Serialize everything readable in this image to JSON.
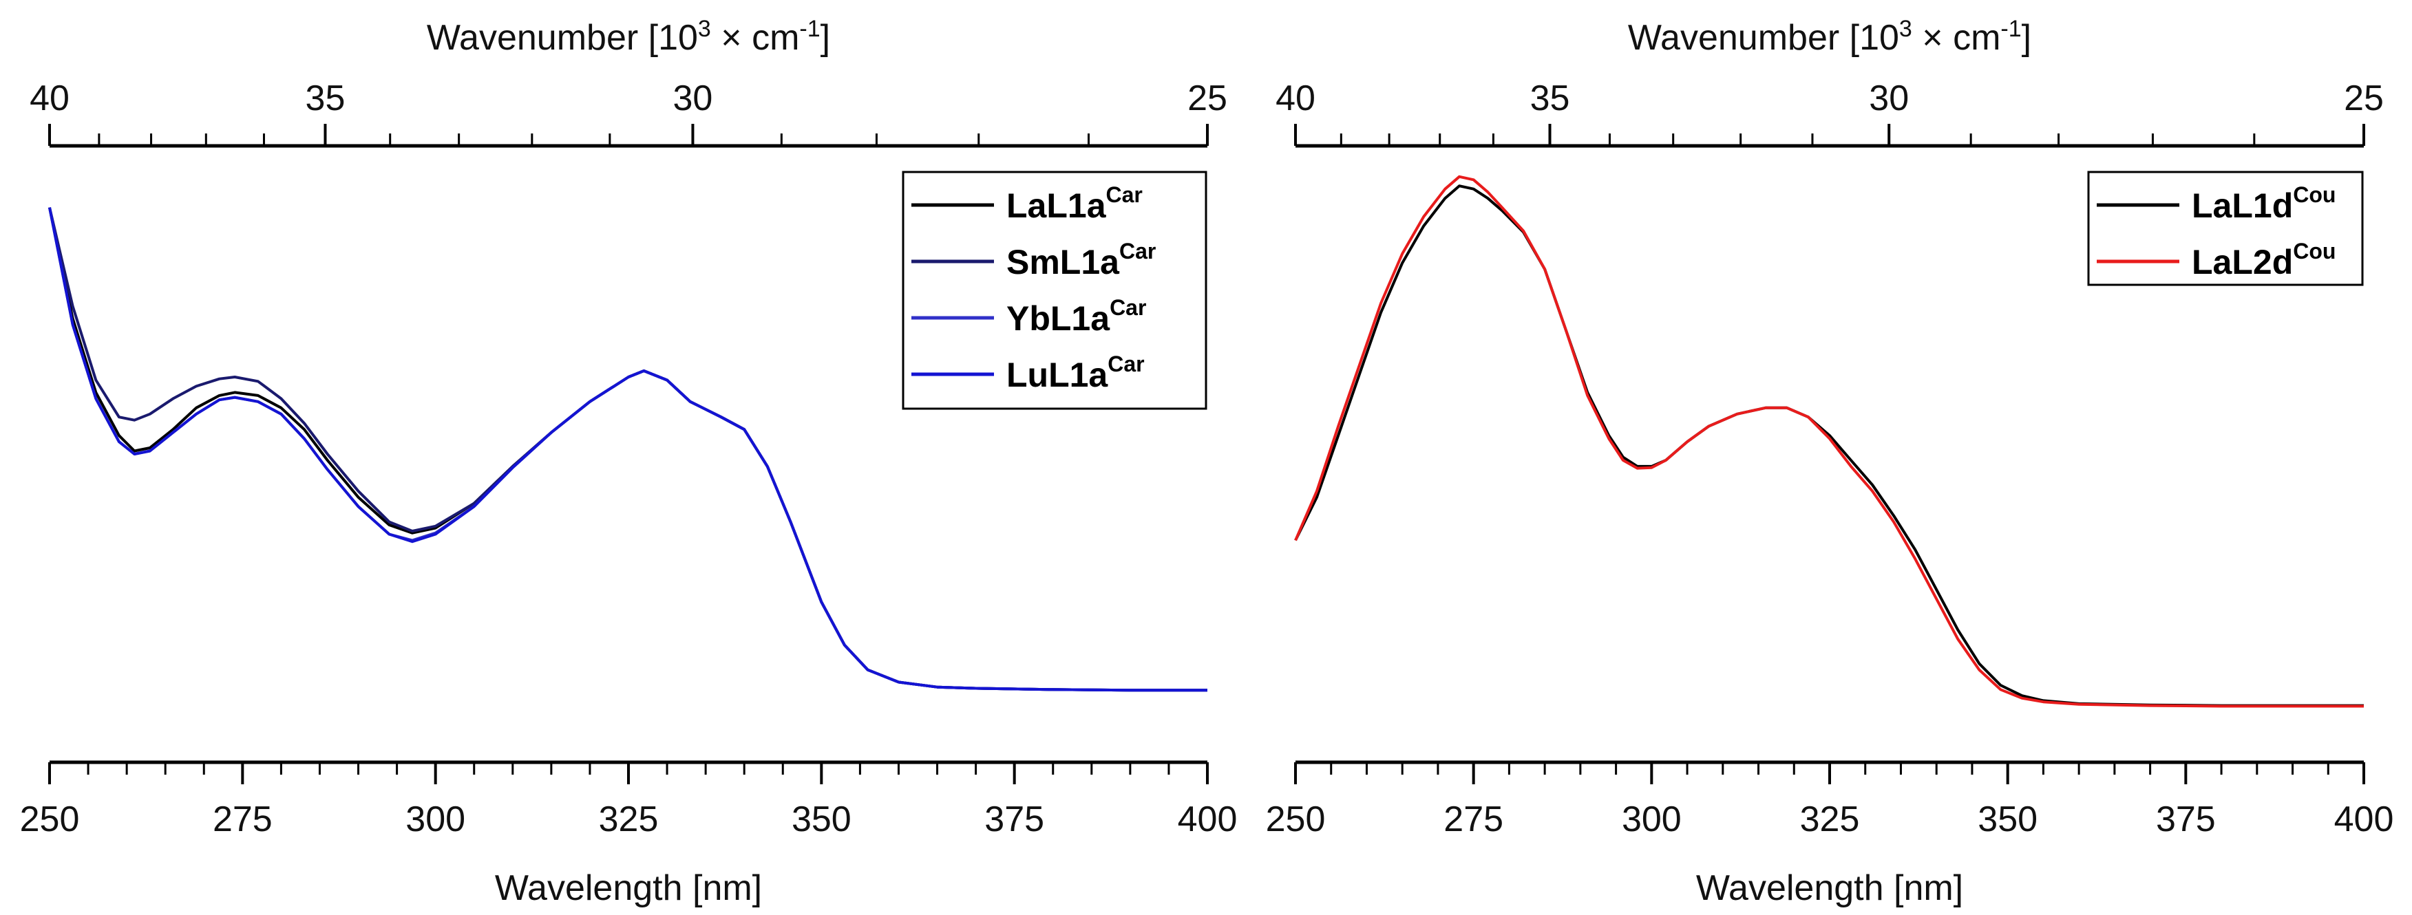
{
  "chart_data": [
    {
      "type": "line",
      "xlabel": "Wavelength [nm]",
      "x2label_prefix": "Wavenumber [10",
      "x2label_exp": "3",
      "x2label_mid": " × cm",
      "x2label_exp2": "-1",
      "x2label_suffix": "]",
      "xlim": [
        250,
        400
      ],
      "ylim": [
        0,
        1
      ],
      "xticks": [
        "250",
        "275",
        "300",
        "325",
        "350",
        "375",
        "400"
      ],
      "x2ticks": [
        "40",
        "35",
        "30",
        "25"
      ],
      "series": [
        {
          "name": "LaL1a",
          "sup": "Car",
          "color": "#000000",
          "x": [
            250,
            253,
            256,
            259,
            261,
            263,
            266,
            269,
            272,
            274,
            277,
            280,
            283,
            286,
            290,
            294,
            297,
            300,
            305,
            310,
            315,
            320,
            325,
            327,
            330,
            333,
            337,
            340,
            343,
            346,
            350,
            353,
            356,
            360,
            365,
            370,
            380,
            390,
            400
          ],
          "y": [
            0.9,
            0.72,
            0.6,
            0.53,
            0.505,
            0.51,
            0.54,
            0.575,
            0.595,
            0.6,
            0.595,
            0.575,
            0.54,
            0.49,
            0.43,
            0.385,
            0.372,
            0.38,
            0.42,
            0.48,
            0.535,
            0.585,
            0.625,
            0.635,
            0.62,
            0.585,
            0.56,
            0.54,
            0.48,
            0.39,
            0.26,
            0.19,
            0.15,
            0.13,
            0.122,
            0.12,
            0.118,
            0.117,
            0.117
          ]
        },
        {
          "name": "SmL1a",
          "sup": "Car",
          "color": "#1a1a6e",
          "x": [
            250,
            253,
            256,
            259,
            261,
            263,
            266,
            269,
            272,
            274,
            277,
            280,
            283,
            286,
            290,
            294,
            297,
            300,
            305,
            310,
            315,
            320,
            325,
            327,
            330,
            333,
            337,
            340,
            343,
            346,
            350,
            353,
            356,
            360,
            365,
            370,
            380,
            390,
            400
          ],
          "y": [
            0.9,
            0.74,
            0.62,
            0.56,
            0.555,
            0.565,
            0.59,
            0.61,
            0.622,
            0.625,
            0.618,
            0.59,
            0.55,
            0.5,
            0.44,
            0.39,
            0.375,
            0.383,
            0.42,
            0.48,
            0.535,
            0.585,
            0.625,
            0.635,
            0.62,
            0.585,
            0.56,
            0.54,
            0.48,
            0.39,
            0.26,
            0.19,
            0.15,
            0.13,
            0.122,
            0.12,
            0.118,
            0.117,
            0.117
          ]
        },
        {
          "name": "YbL1a",
          "sup": "Car",
          "color": "#3030c8",
          "x": [
            250,
            253,
            256,
            259,
            261,
            263,
            266,
            269,
            272,
            274,
            277,
            280,
            283,
            286,
            290,
            294,
            297,
            300,
            305,
            310,
            315,
            320,
            325,
            327,
            330,
            333,
            337,
            340,
            343,
            346,
            350,
            353,
            356,
            360,
            365,
            370,
            380,
            390,
            400
          ],
          "y": [
            0.9,
            0.71,
            0.59,
            0.52,
            0.5,
            0.505,
            0.535,
            0.565,
            0.588,
            0.592,
            0.585,
            0.565,
            0.525,
            0.475,
            0.415,
            0.37,
            0.36,
            0.372,
            0.415,
            0.478,
            0.535,
            0.585,
            0.625,
            0.635,
            0.62,
            0.585,
            0.56,
            0.54,
            0.48,
            0.39,
            0.26,
            0.19,
            0.15,
            0.13,
            0.122,
            0.12,
            0.118,
            0.117,
            0.117
          ]
        },
        {
          "name": "LuL1a",
          "sup": "Car",
          "color": "#1414d2",
          "x": [
            250,
            253,
            256,
            259,
            261,
            263,
            266,
            269,
            272,
            274,
            277,
            280,
            283,
            286,
            290,
            294,
            297,
            300,
            305,
            310,
            315,
            320,
            325,
            327,
            330,
            333,
            337,
            340,
            343,
            346,
            350,
            353,
            356,
            360,
            365,
            370,
            380,
            390,
            400
          ],
          "y": [
            0.9,
            0.71,
            0.59,
            0.52,
            0.5,
            0.505,
            0.535,
            0.565,
            0.588,
            0.592,
            0.585,
            0.565,
            0.525,
            0.475,
            0.415,
            0.37,
            0.358,
            0.37,
            0.415,
            0.478,
            0.535,
            0.585,
            0.625,
            0.635,
            0.62,
            0.585,
            0.56,
            0.54,
            0.48,
            0.39,
            0.26,
            0.19,
            0.15,
            0.13,
            0.122,
            0.12,
            0.118,
            0.117,
            0.117
          ]
        }
      ]
    },
    {
      "type": "line",
      "xlabel": "Wavelength [nm]",
      "x2label_prefix": "Wavenumber [10",
      "x2label_exp": "3",
      "x2label_mid": " × cm",
      "x2label_exp2": "-1",
      "x2label_suffix": "]",
      "xlim": [
        250,
        400
      ],
      "ylim": [
        0,
        1
      ],
      "xticks": [
        "250",
        "275",
        "300",
        "325",
        "350",
        "375",
        "400"
      ],
      "x2ticks": [
        "40",
        "35",
        "30",
        "25"
      ],
      "series": [
        {
          "name": "LaL1d",
          "sup": "Cou",
          "color": "#000000",
          "x": [
            250,
            253,
            256,
            259,
            262,
            265,
            268,
            271,
            273,
            275,
            277,
            279,
            282,
            285,
            288,
            291,
            294,
            296,
            298,
            300,
            302,
            305,
            308,
            312,
            316,
            319,
            322,
            325,
            328,
            331,
            334,
            337,
            340,
            343,
            346,
            349,
            352,
            355,
            360,
            370,
            380,
            390,
            400
          ],
          "y": [
            0.36,
            0.43,
            0.53,
            0.63,
            0.73,
            0.81,
            0.87,
            0.915,
            0.935,
            0.93,
            0.915,
            0.895,
            0.86,
            0.8,
            0.7,
            0.6,
            0.53,
            0.495,
            0.48,
            0.48,
            0.49,
            0.52,
            0.545,
            0.565,
            0.575,
            0.575,
            0.56,
            0.53,
            0.49,
            0.45,
            0.4,
            0.345,
            0.28,
            0.215,
            0.16,
            0.125,
            0.108,
            0.1,
            0.095,
            0.093,
            0.092,
            0.092,
            0.092
          ]
        },
        {
          "name": "LaL2d",
          "sup": "Cou",
          "color": "#e81c1c",
          "x": [
            250,
            253,
            256,
            259,
            262,
            265,
            268,
            271,
            273,
            275,
            277,
            279,
            282,
            285,
            288,
            291,
            294,
            296,
            298,
            300,
            302,
            305,
            308,
            312,
            316,
            319,
            322,
            325,
            328,
            331,
            334,
            337,
            340,
            343,
            346,
            349,
            352,
            355,
            360,
            370,
            380,
            390,
            400
          ],
          "y": [
            0.36,
            0.44,
            0.545,
            0.645,
            0.745,
            0.825,
            0.885,
            0.93,
            0.95,
            0.945,
            0.925,
            0.9,
            0.862,
            0.8,
            0.7,
            0.595,
            0.525,
            0.49,
            0.477,
            0.478,
            0.49,
            0.52,
            0.545,
            0.565,
            0.575,
            0.575,
            0.56,
            0.525,
            0.48,
            0.44,
            0.39,
            0.33,
            0.265,
            0.2,
            0.15,
            0.118,
            0.104,
            0.098,
            0.094,
            0.092,
            0.091,
            0.091,
            0.091
          ]
        }
      ]
    }
  ]
}
